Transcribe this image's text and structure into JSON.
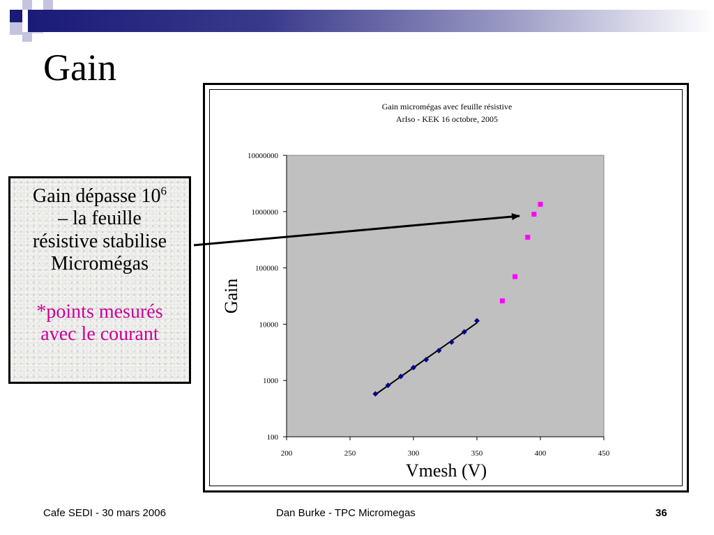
{
  "slide": {
    "title": "Gain",
    "callout_line1_a": "Gain dépasse 10",
    "callout_line1_sup": "6",
    "callout_line2": "– la feuille",
    "callout_line3": "résistive stabilise",
    "callout_line4": "Micromégas",
    "callout_note1": "*points mesurés",
    "callout_note2": "avec le courant"
  },
  "footer": {
    "left": "Cafe SEDI - 30 mars 2006",
    "center": "Dan Burke - TPC Micromegas",
    "page_number": "36"
  },
  "colors": {
    "navy": "#1a1a78",
    "accent_light": "#9a9ac4",
    "plot_bg": "#c0c0c0",
    "series_measured": "#00008b",
    "series_current": "#ff00ff",
    "note_pink": "#cc0099"
  },
  "chart_data": {
    "type": "scatter",
    "title": "Gain micromégas avec feuille résistive",
    "subtitle": "ArIso - KEK 16 octobre, 2005",
    "xlabel": "Vmesh (V)",
    "ylabel": "Gain",
    "xlim": [
      200,
      450
    ],
    "ylim": [
      100,
      10000000
    ],
    "yscale": "log",
    "x_ticks": [
      "200",
      "250",
      "300",
      "350",
      "400",
      "450"
    ],
    "y_ticks": [
      "100",
      "1000",
      "10000",
      "100000",
      "1000000",
      "10000000"
    ],
    "grid": false,
    "legend": "none",
    "series": [
      {
        "marker": "diamond",
        "color": "#00008b",
        "trendline": true,
        "points": [
          [
            270,
            580
          ],
          [
            280,
            820
          ],
          [
            290,
            1180
          ],
          [
            300,
            1700
          ],
          [
            310,
            2350
          ],
          [
            320,
            3400
          ],
          [
            330,
            4800
          ],
          [
            340,
            7300
          ],
          [
            350,
            11500
          ]
        ]
      },
      {
        "marker": "square",
        "color": "#ff00ff",
        "trendline": false,
        "points": [
          [
            370,
            26000
          ],
          [
            380,
            70000
          ],
          [
            390,
            350000
          ],
          [
            395,
            900000
          ],
          [
            400,
            1350000
          ]
        ]
      }
    ],
    "annotation_arrow": "callout to highest gain points"
  }
}
